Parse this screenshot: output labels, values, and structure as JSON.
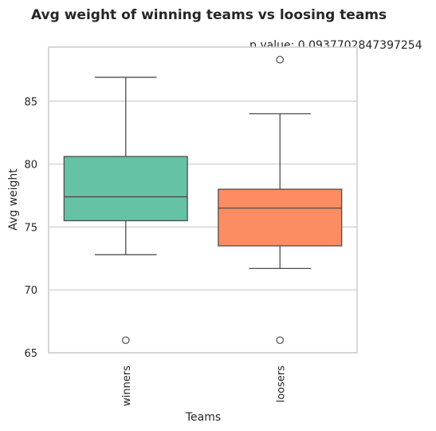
{
  "chart_data": {
    "type": "box",
    "title": "Avg weight of winning teams vs loosing teams",
    "annotation": "p value: 0.0937702847397254",
    "xlabel": "Teams",
    "ylabel": "Avg weight",
    "ylim": [
      65,
      89.3
    ],
    "yticks": [
      65,
      70,
      75,
      80,
      85
    ],
    "grid": true,
    "categories": [
      "winners",
      "loosers"
    ],
    "colors": [
      "#66c2a5",
      "#fc8d62"
    ],
    "boxes": [
      {
        "name": "winners",
        "whisker_low": 72.8,
        "q1": 75.5,
        "median": 77.4,
        "q3": 80.6,
        "whisker_high": 86.9,
        "outliers": [
          66.0
        ]
      },
      {
        "name": "loosers",
        "whisker_low": 71.7,
        "q1": 73.5,
        "median": 76.5,
        "q3": 78.0,
        "whisker_high": 84.0,
        "outliers": [
          66.0,
          88.3
        ]
      }
    ]
  }
}
